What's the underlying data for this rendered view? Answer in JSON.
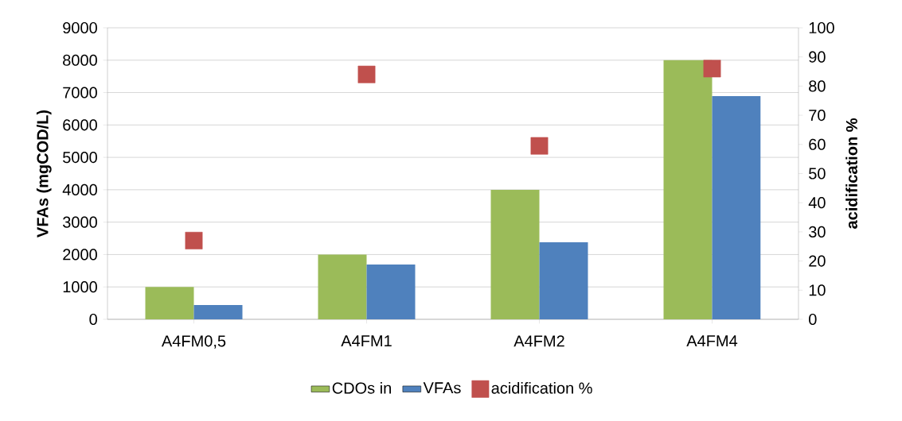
{
  "chart_data": {
    "type": "bar",
    "categories": [
      "A4FM0,5",
      "A4FM1",
      "A4FM2",
      "A4FM4"
    ],
    "series": [
      {
        "name": "CDOs in",
        "color": "#9bbb59",
        "values": [
          1000,
          2000,
          4000,
          8000
        ]
      },
      {
        "name": "VFAs",
        "color": "#4f81bd",
        "values": [
          440,
          1690,
          2380,
          6890
        ]
      },
      {
        "name": "acidification %",
        "color": "#c0504d",
        "type": "scatter",
        "axis": "y2",
        "marker": "square",
        "values": [
          27,
          84,
          59.5,
          86
        ]
      }
    ],
    "ylabel": "VFAs (mgCOD/L)",
    "y2label": "acidification %",
    "ylim": [
      0,
      9000
    ],
    "yticks": [
      0,
      1000,
      2000,
      3000,
      4000,
      5000,
      6000,
      7000,
      8000,
      9000
    ],
    "y2lim": [
      0,
      100
    ],
    "y2ticks": [
      0,
      10,
      20,
      30,
      40,
      50,
      60,
      70,
      80,
      90,
      100
    ],
    "grid": "y",
    "legend": "bottom"
  }
}
